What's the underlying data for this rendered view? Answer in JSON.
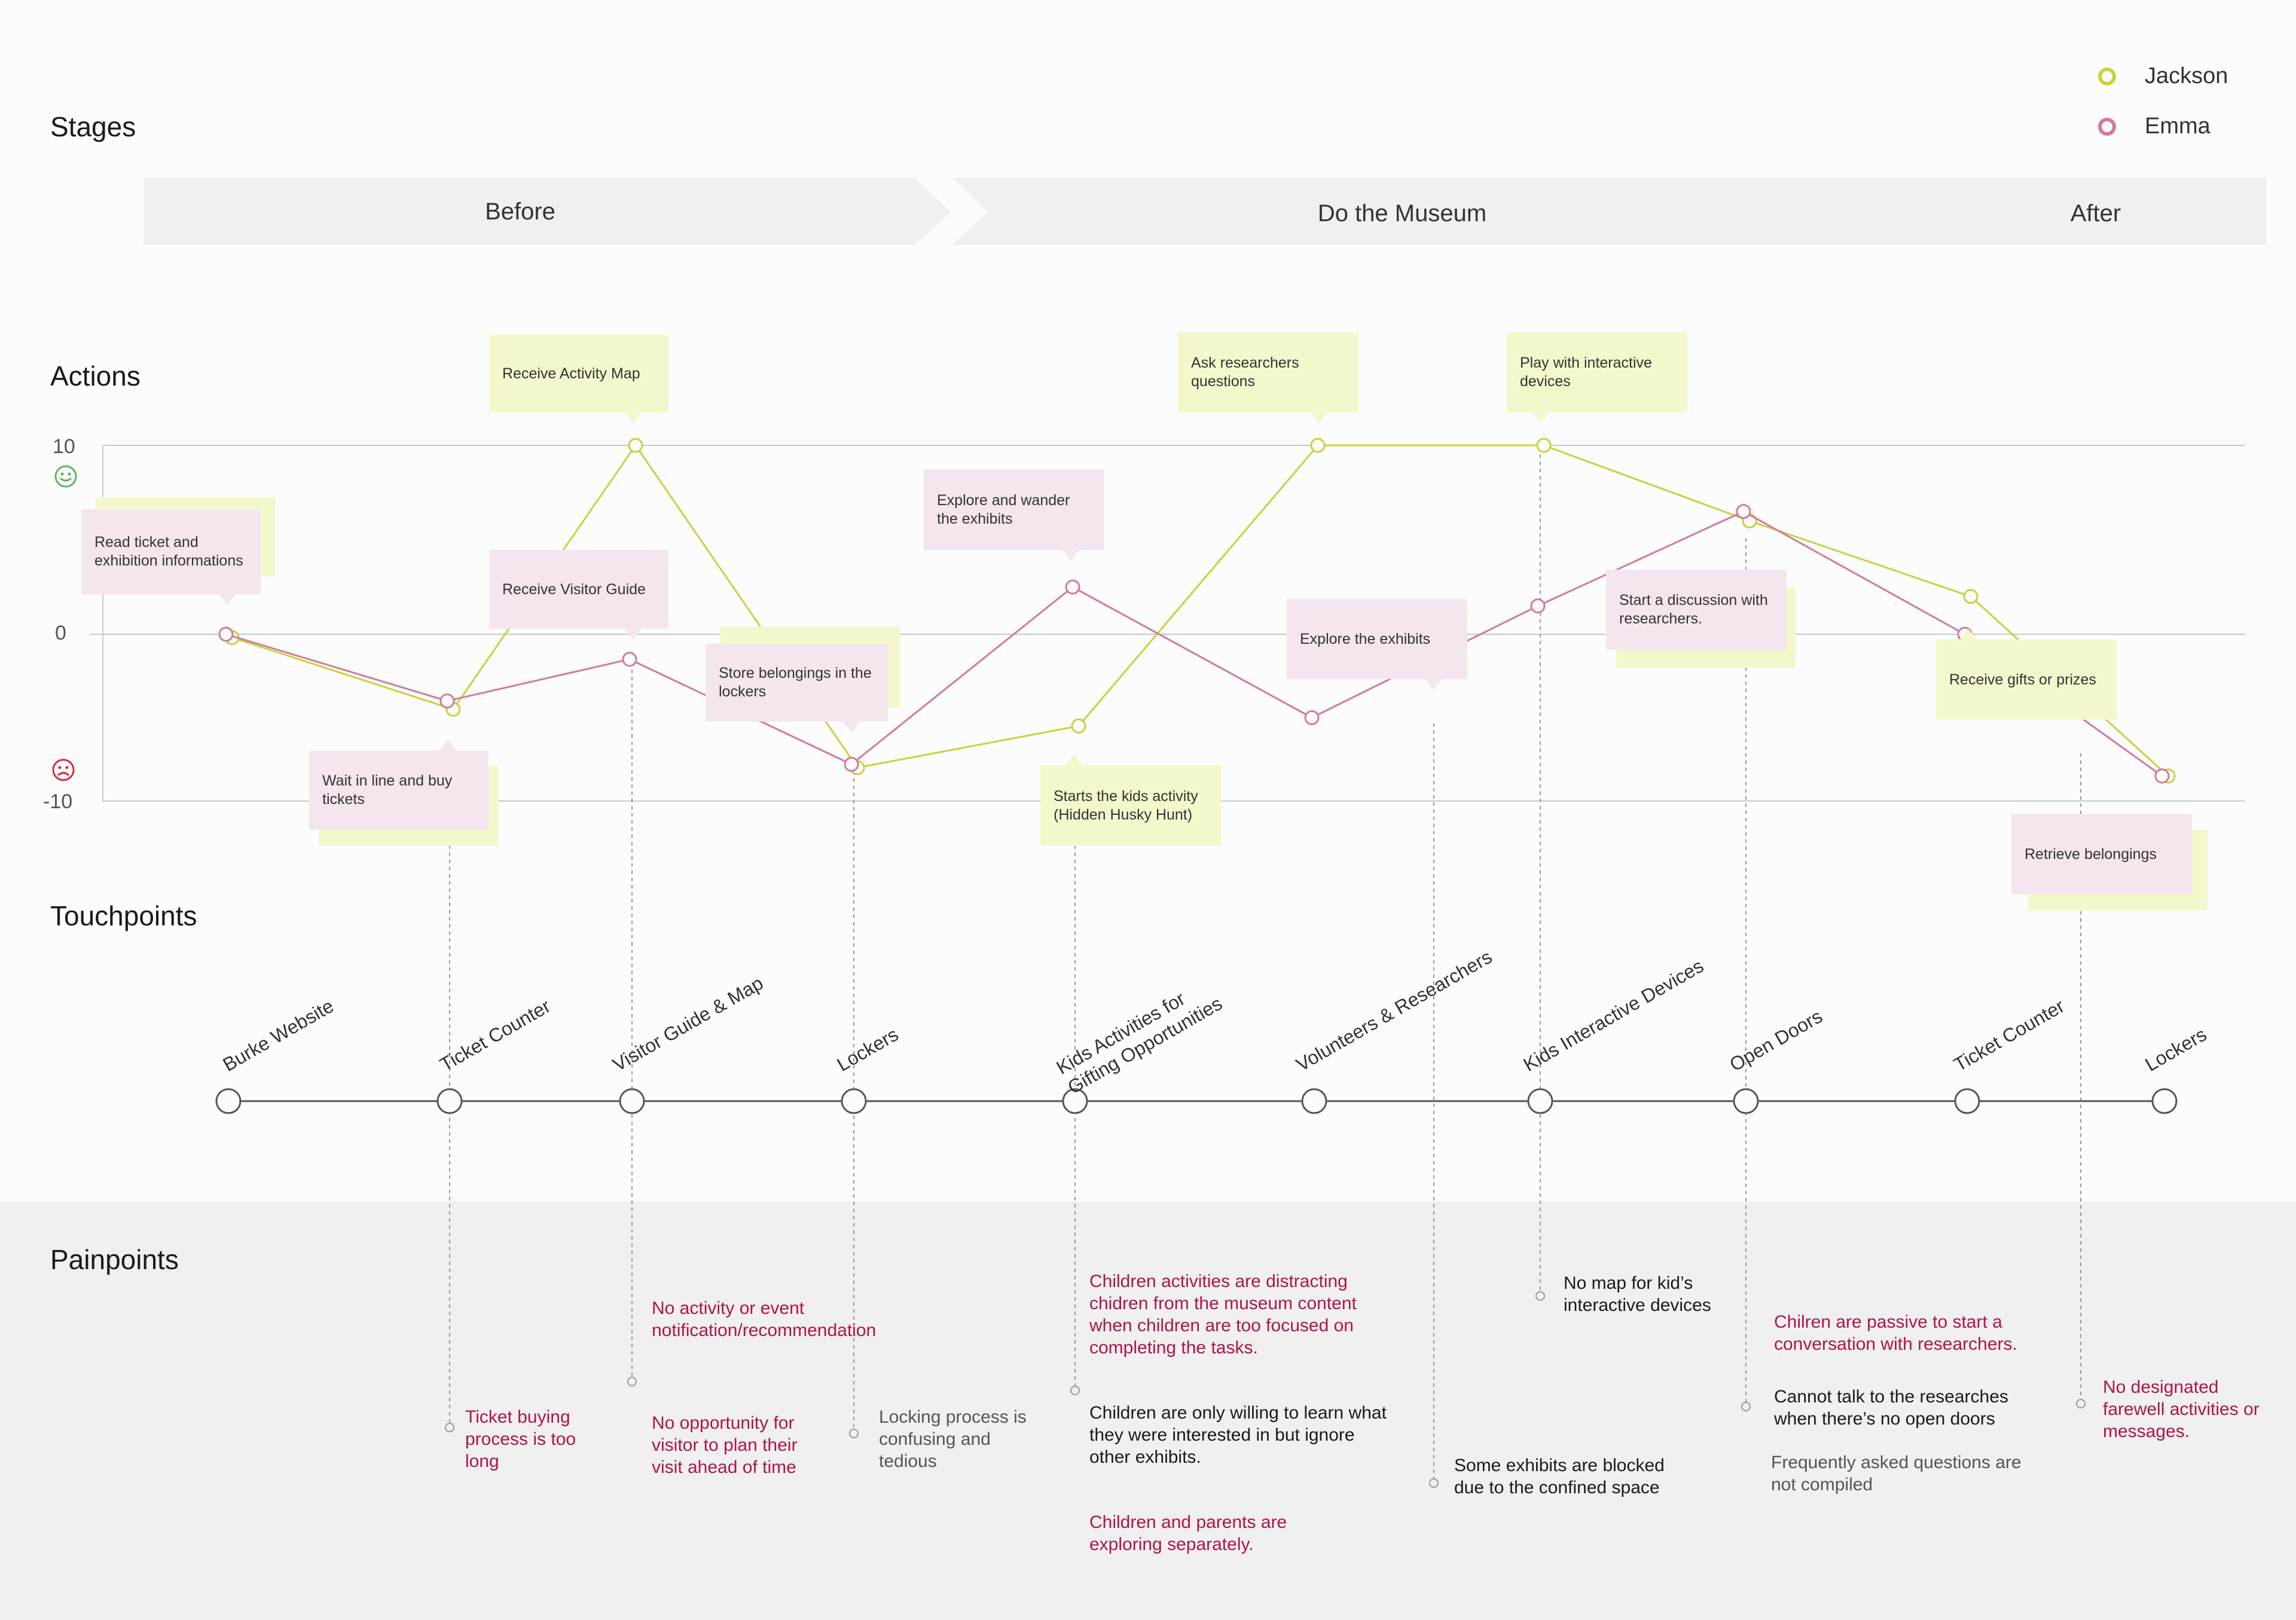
{
  "sections": {
    "stages": "Stages",
    "actions": "Actions",
    "touchpoints": "Touchpoints",
    "painpoints": "Painpoints"
  },
  "legend": [
    {
      "name": "Jackson",
      "color": "#c6d33c"
    },
    {
      "name": "Emma",
      "color": "#d37a9a"
    }
  ],
  "stages": [
    "Before",
    "Do the Museum",
    "After"
  ],
  "axis": {
    "max_label": "10",
    "zero_label": "0",
    "min_label": "-10",
    "happy_icon": "smiley-icon",
    "sad_icon": "frown-icon"
  },
  "chart_data": {
    "type": "line",
    "ylim": [
      -10,
      10
    ],
    "x": [
      "Burke Website",
      "Ticket Counter",
      "Visitor Guide & Map",
      "Lockers",
      "Kids Activities for Gifting Opportunities",
      "Volunteers & Researchers",
      "Kids Interactive Devices",
      "Open Doors",
      "Ticket Counter",
      "Lockers"
    ],
    "series": [
      {
        "name": "Jackson",
        "color": "#c6d33c",
        "values": [
          -0.2,
          -4.5,
          10,
          -8,
          -5.5,
          10,
          10,
          6,
          2,
          -8.5
        ]
      },
      {
        "name": "Emma",
        "color": "#d37a9a",
        "values": [
          0,
          -4,
          -1.5,
          -7.8,
          2.5,
          -5,
          1.5,
          6.5,
          0,
          -8.5
        ]
      }
    ]
  },
  "actions": [
    {
      "text": "Read ticket and exhibition informations",
      "color": "p"
    },
    {
      "text": "Wait in line and buy tickets",
      "color": "p"
    },
    {
      "text": "Receive Activity Map",
      "color": "y"
    },
    {
      "text": "Receive Visitor Guide",
      "color": "p"
    },
    {
      "text": "Store belongings in the lockers",
      "color": "p"
    },
    {
      "text": "Explore and wander the exhibits",
      "color": "p"
    },
    {
      "text": "Starts the kids activity (Hidden Husky Hunt)",
      "color": "y"
    },
    {
      "text": "Ask researchers questions",
      "color": "y"
    },
    {
      "text": "Explore the exhibits",
      "color": "p"
    },
    {
      "text": "Play with interactive devices",
      "color": "y"
    },
    {
      "text": "Start a discussion with researchers.",
      "color": "p"
    },
    {
      "text": "Receive gifts or prizes",
      "color": "y"
    },
    {
      "text": "Retrieve belongings",
      "color": "p"
    }
  ],
  "touchpoints": [
    "Burke Website",
    "Ticket Counter",
    "Visitor Guide & Map",
    "Lockers",
    "Kids Activities for\nGifting Opportunities",
    "Volunteers & Researchers",
    "Kids Interactive Devices",
    "Open Doors",
    "Ticket Counter",
    "Lockers"
  ],
  "painpoints": [
    {
      "text": "Ticket buying process is too long",
      "color": "red"
    },
    {
      "text": "No activity or event notification/recommendation",
      "color": "red"
    },
    {
      "text": "No opportunity for visitor to plan their visit ahead of time",
      "color": "red"
    },
    {
      "text": "Locking process is confusing and tedious",
      "color": "gry"
    },
    {
      "text": "Children activities are distracting chidren from the museum content when children are too focused on completing the tasks.",
      "color": "red"
    },
    {
      "text": "Children are only willing to learn what they were interested in but ignore other exhibits.",
      "color": "blk"
    },
    {
      "text": "Children and parents are exploring separately.",
      "color": "red"
    },
    {
      "text": "Some exhibits are blocked due to the confined space",
      "color": "blk"
    },
    {
      "text": "No map for kid’s interactive devices",
      "color": "blk"
    },
    {
      "text": "Chilren are passive to start a conversation with researchers.",
      "color": "red"
    },
    {
      "text": "Cannot talk to the researches when there’s no open doors",
      "color": "blk"
    },
    {
      "text": "Frequently asked questions are not compiled",
      "color": "gry"
    },
    {
      "text": "No designated farewell activities or messages.",
      "color": "red"
    }
  ]
}
